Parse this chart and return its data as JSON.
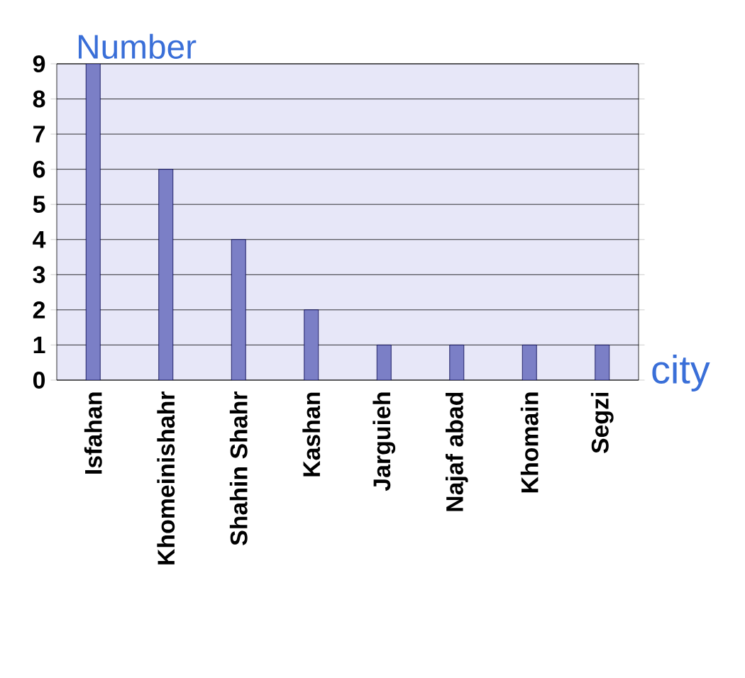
{
  "chart_data": {
    "type": "bar",
    "xlabel": "city",
    "ylabel": "Number",
    "categories": [
      "Isfahan",
      "Khomeinishahr",
      "Shahin Shahr",
      "Kashan",
      "Jarguieh",
      "Najaf abad",
      "Khomain",
      "Segzi"
    ],
    "values": [
      9,
      6,
      4,
      2,
      1,
      1,
      1,
      1
    ],
    "color": "#7b7fc6",
    "ylim": [
      0,
      9
    ],
    "yticks": [
      0,
      1,
      2,
      3,
      4,
      5,
      6,
      7,
      8,
      9
    ],
    "grid": "y"
  }
}
